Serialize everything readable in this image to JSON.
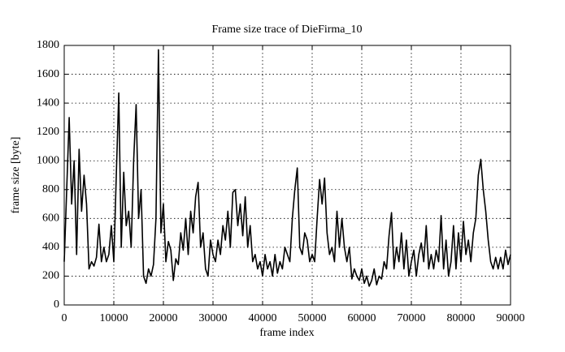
{
  "chart_data": {
    "type": "line",
    "title": "Frame size trace of DieFirma_10",
    "x_label": "frame index",
    "y_label": "frame size [byte]",
    "color": "#000000",
    "grid": true,
    "xlim": [
      0,
      90000
    ],
    "ylim": [
      0,
      1800
    ],
    "xticks": [
      0,
      10000,
      20000,
      30000,
      40000,
      50000,
      60000,
      70000,
      80000,
      90000
    ],
    "yticks": [
      0,
      200,
      400,
      600,
      800,
      1000,
      1200,
      1400,
      1600,
      1800
    ],
    "x": [
      0,
      500,
      1000,
      1500,
      2000,
      2500,
      3000,
      3500,
      4000,
      4500,
      5000,
      5500,
      6000,
      6500,
      7000,
      7500,
      8000,
      8500,
      9000,
      9500,
      10000,
      10500,
      11000,
      11500,
      12000,
      12500,
      13000,
      13500,
      14000,
      14500,
      15000,
      15500,
      16000,
      16500,
      17000,
      17500,
      18000,
      18500,
      19000,
      19500,
      20000,
      20500,
      21000,
      21500,
      22000,
      22500,
      23000,
      23500,
      24000,
      24500,
      25000,
      25500,
      26000,
      26500,
      27000,
      27500,
      28000,
      28500,
      29000,
      29500,
      30000,
      30500,
      31000,
      31500,
      32000,
      32500,
      33000,
      33500,
      34000,
      34500,
      35000,
      35500,
      36000,
      36500,
      37000,
      37500,
      38000,
      38500,
      39000,
      39500,
      40000,
      40500,
      41000,
      41500,
      42000,
      42500,
      43000,
      43500,
      44000,
      44500,
      45000,
      45500,
      46000,
      46500,
      47000,
      47500,
      48000,
      48500,
      49000,
      49500,
      50000,
      50500,
      51000,
      51500,
      52000,
      52500,
      53000,
      53500,
      54000,
      54500,
      55000,
      55500,
      56000,
      56500,
      57000,
      57500,
      58000,
      58500,
      59000,
      59500,
      60000,
      60500,
      61000,
      61500,
      62000,
      62500,
      63000,
      63500,
      64000,
      64500,
      65000,
      65500,
      66000,
      66500,
      67000,
      67500,
      68000,
      68500,
      69000,
      69500,
      70000,
      70500,
      71000,
      71500,
      72000,
      72500,
      73000,
      73500,
      74000,
      74500,
      75000,
      75500,
      76000,
      76500,
      77000,
      77500,
      78000,
      78500,
      79000,
      79500,
      80000,
      80500,
      81000,
      81500,
      82000,
      82500,
      83000,
      83500,
      84000,
      84500,
      85000,
      85500,
      86000,
      86500,
      87000,
      87500,
      88000,
      88500,
      89000,
      89500,
      90000
    ],
    "values": [
      300,
      800,
      1300,
      700,
      1000,
      350,
      1080,
      650,
      900,
      700,
      250,
      300,
      270,
      330,
      560,
      300,
      400,
      300,
      350,
      550,
      300,
      900,
      1470,
      400,
      920,
      550,
      650,
      400,
      1000,
      1390,
      600,
      800,
      200,
      150,
      250,
      200,
      280,
      600,
      1770,
      500,
      700,
      300,
      440,
      380,
      170,
      320,
      280,
      500,
      380,
      600,
      350,
      650,
      500,
      750,
      850,
      400,
      500,
      250,
      200,
      450,
      350,
      300,
      450,
      350,
      550,
      450,
      650,
      400,
      780,
      800,
      550,
      700,
      480,
      750,
      400,
      550,
      300,
      350,
      250,
      300,
      200,
      350,
      250,
      300,
      200,
      350,
      220,
      300,
      250,
      400,
      350,
      300,
      600,
      800,
      950,
      400,
      350,
      500,
      450,
      300,
      350,
      300,
      600,
      870,
      700,
      880,
      500,
      350,
      400,
      300,
      650,
      400,
      600,
      400,
      300,
      400,
      180,
      250,
      200,
      170,
      250,
      150,
      200,
      130,
      170,
      250,
      140,
      200,
      180,
      300,
      250,
      480,
      640,
      250,
      400,
      300,
      500,
      250,
      450,
      200,
      300,
      380,
      200,
      350,
      430,
      300,
      550,
      250,
      350,
      250,
      380,
      300,
      620,
      250,
      450,
      200,
      300,
      550,
      250,
      500,
      300,
      580,
      350,
      450,
      300,
      500,
      600,
      900,
      1010,
      800,
      650,
      450,
      300,
      250,
      330,
      250,
      330,
      250,
      380,
      280,
      350
    ]
  }
}
